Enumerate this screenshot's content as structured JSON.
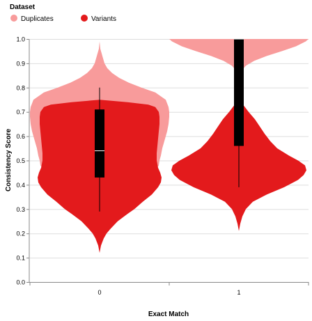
{
  "chart_data": {
    "type": "violin",
    "legend": {
      "title": "Dataset",
      "placement": "top-left",
      "entries": [
        {
          "name": "Duplicates",
          "color": "#f89b9b"
        },
        {
          "name": "Variants",
          "color": "#e31a1c"
        }
      ]
    },
    "xlabel": "Exact Match",
    "ylabel": "Consistency Score",
    "categories": [
      "0",
      "1"
    ],
    "ylim": [
      0,
      1
    ],
    "yticks": [
      "0.0",
      "0.1",
      "0.2",
      "0.3",
      "0.4",
      "0.5",
      "0.6",
      "0.7",
      "0.8",
      "0.9",
      "1.0"
    ],
    "grid": true,
    "split_violin": true,
    "series": [
      {
        "name": "Duplicates",
        "color": "#f89b9b",
        "groups": [
          {
            "category": "0",
            "density": [
              [
                0.4,
                0.1
              ],
              [
                0.42,
                0.45
              ],
              [
                0.44,
                0.7
              ],
              [
                0.46,
                0.8
              ],
              [
                0.48,
                0.85
              ],
              [
                0.5,
                0.86
              ],
              [
                0.52,
                0.88
              ],
              [
                0.55,
                0.9
              ],
              [
                0.58,
                0.93
              ],
              [
                0.6,
                0.95
              ],
              [
                0.62,
                0.97
              ],
              [
                0.65,
                0.99
              ],
              [
                0.68,
                1.0
              ],
              [
                0.7,
                1.0
              ],
              [
                0.72,
                0.99
              ],
              [
                0.75,
                0.95
              ],
              [
                0.78,
                0.8
              ],
              [
                0.8,
                0.6
              ],
              [
                0.82,
                0.42
              ],
              [
                0.84,
                0.28
              ],
              [
                0.86,
                0.18
              ],
              [
                0.88,
                0.11
              ],
              [
                0.9,
                0.07
              ],
              [
                0.93,
                0.04
              ],
              [
                0.96,
                0.01
              ],
              [
                0.99,
                0.0
              ]
            ]
          },
          {
            "category": "1",
            "density": [
              [
                0.85,
                0.0
              ],
              [
                0.87,
                0.04
              ],
              [
                0.89,
                0.1
              ],
              [
                0.91,
                0.22
              ],
              [
                0.93,
                0.4
              ],
              [
                0.95,
                0.62
              ],
              [
                0.97,
                0.82
              ],
              [
                0.99,
                0.96
              ],
              [
                1.0,
                1.0
              ]
            ]
          }
        ]
      },
      {
        "name": "Variants",
        "color": "#e31a1c",
        "groups": [
          {
            "category": "0",
            "density": [
              [
                0.12,
                0.0
              ],
              [
                0.15,
                0.02
              ],
              [
                0.18,
                0.06
              ],
              [
                0.2,
                0.1
              ],
              [
                0.22,
                0.16
              ],
              [
                0.25,
                0.26
              ],
              [
                0.28,
                0.4
              ],
              [
                0.3,
                0.5
              ],
              [
                0.33,
                0.62
              ],
              [
                0.36,
                0.75
              ],
              [
                0.39,
                0.84
              ],
              [
                0.41,
                0.88
              ],
              [
                0.43,
                0.89
              ],
              [
                0.45,
                0.87
              ],
              [
                0.47,
                0.84
              ],
              [
                0.5,
                0.82
              ],
              [
                0.53,
                0.82
              ],
              [
                0.56,
                0.83
              ],
              [
                0.59,
                0.84
              ],
              [
                0.62,
                0.85
              ],
              [
                0.65,
                0.86
              ],
              [
                0.68,
                0.86
              ],
              [
                0.7,
                0.85
              ],
              [
                0.72,
                0.8
              ],
              [
                0.73,
                0.7
              ],
              [
                0.74,
                0.4
              ],
              [
                0.75,
                0.0
              ]
            ]
          },
          {
            "category": "1",
            "density": [
              [
                0.21,
                0.0
              ],
              [
                0.24,
                0.02
              ],
              [
                0.27,
                0.05
              ],
              [
                0.3,
                0.1
              ],
              [
                0.33,
                0.2
              ],
              [
                0.36,
                0.4
              ],
              [
                0.39,
                0.65
              ],
              [
                0.42,
                0.85
              ],
              [
                0.44,
                0.93
              ],
              [
                0.46,
                0.97
              ],
              [
                0.48,
                0.95
              ],
              [
                0.5,
                0.85
              ],
              [
                0.52,
                0.72
              ],
              [
                0.55,
                0.55
              ],
              [
                0.58,
                0.45
              ],
              [
                0.61,
                0.37
              ],
              [
                0.64,
                0.3
              ],
              [
                0.67,
                0.23
              ],
              [
                0.7,
                0.14
              ],
              [
                0.73,
                0.06
              ],
              [
                0.76,
                0.0
              ]
            ]
          }
        ]
      }
    ],
    "boxes": [
      {
        "category": "0",
        "whisker_low": 0.29,
        "q1": 0.43,
        "median": 0.54,
        "q3": 0.71,
        "whisker_high": 0.8
      },
      {
        "category": "1",
        "whisker_low": 0.39,
        "q1": 0.56,
        "median": 1.0,
        "q3": 1.0,
        "whisker_high": 1.0
      }
    ]
  }
}
